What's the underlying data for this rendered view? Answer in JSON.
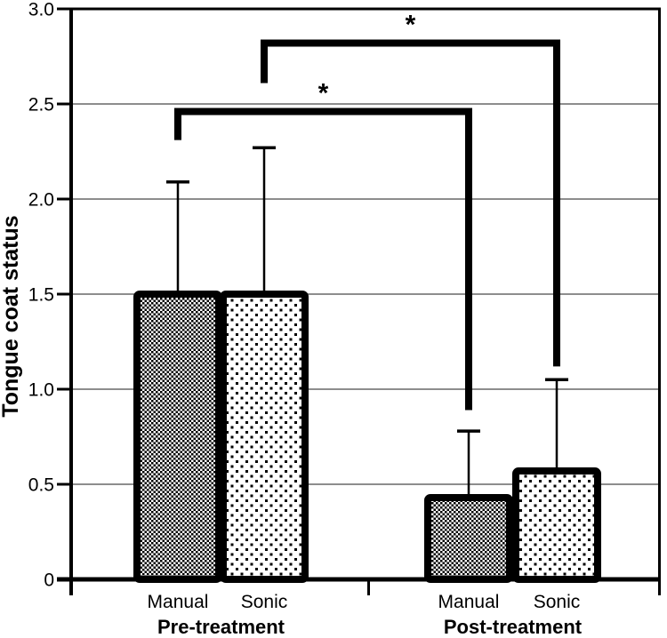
{
  "chart_data": {
    "type": "bar",
    "title": "",
    "ylabel": "Tongue coat status",
    "xlabel": "",
    "ylim": [
      0,
      3.0
    ],
    "grid": "horizontal",
    "legend_position": "none",
    "yticks": [
      {
        "value": 0,
        "label": "0"
      },
      {
        "value": 0.5,
        "label": "0.5"
      },
      {
        "value": 1.0,
        "label": "1.0"
      },
      {
        "value": 1.5,
        "label": "1.5"
      },
      {
        "value": 2.0,
        "label": "2.0"
      },
      {
        "value": 2.5,
        "label": "2.5"
      },
      {
        "value": 3.0,
        "label": "3.0"
      }
    ],
    "categories": [
      "Manual",
      "Sonic"
    ],
    "groups": [
      {
        "label": "Pre-treatment",
        "bars": [
          {
            "series": "Manual",
            "value": 1.5,
            "error_top": 2.09
          },
          {
            "series": "Sonic",
            "value": 1.5,
            "error_top": 2.27
          }
        ]
      },
      {
        "label": "Post-treatment",
        "bars": [
          {
            "series": "Manual",
            "value": 0.43,
            "error_top": 0.78
          },
          {
            "series": "Sonic",
            "value": 0.57,
            "error_top": 1.05
          }
        ]
      }
    ],
    "significance": [
      {
        "label": "*",
        "comparison": "Pre-treatment Manual vs Post-treatment Manual",
        "level": 2.46,
        "from": {
          "group": 0,
          "bar": 0
        },
        "to": {
          "group": 1,
          "bar": 0
        },
        "drop_left_to": 2.31,
        "drop_right_to": 0.89
      },
      {
        "label": "*",
        "comparison": "Pre-treatment Sonic vs Post-treatment Sonic",
        "level": 2.82,
        "from": {
          "group": 0,
          "bar": 1
        },
        "to": {
          "group": 1,
          "bar": 1
        },
        "drop_left_to": 2.61,
        "drop_right_to": 1.12
      }
    ],
    "patterns": {
      "Manual": "fine-checkerboard",
      "Sonic": "sparse-dots"
    },
    "colors": {
      "bar_outline": "#000000",
      "gridline": "#7d7d7d",
      "axis": "#000000",
      "text": "#000000",
      "background": "#ffffff"
    }
  }
}
